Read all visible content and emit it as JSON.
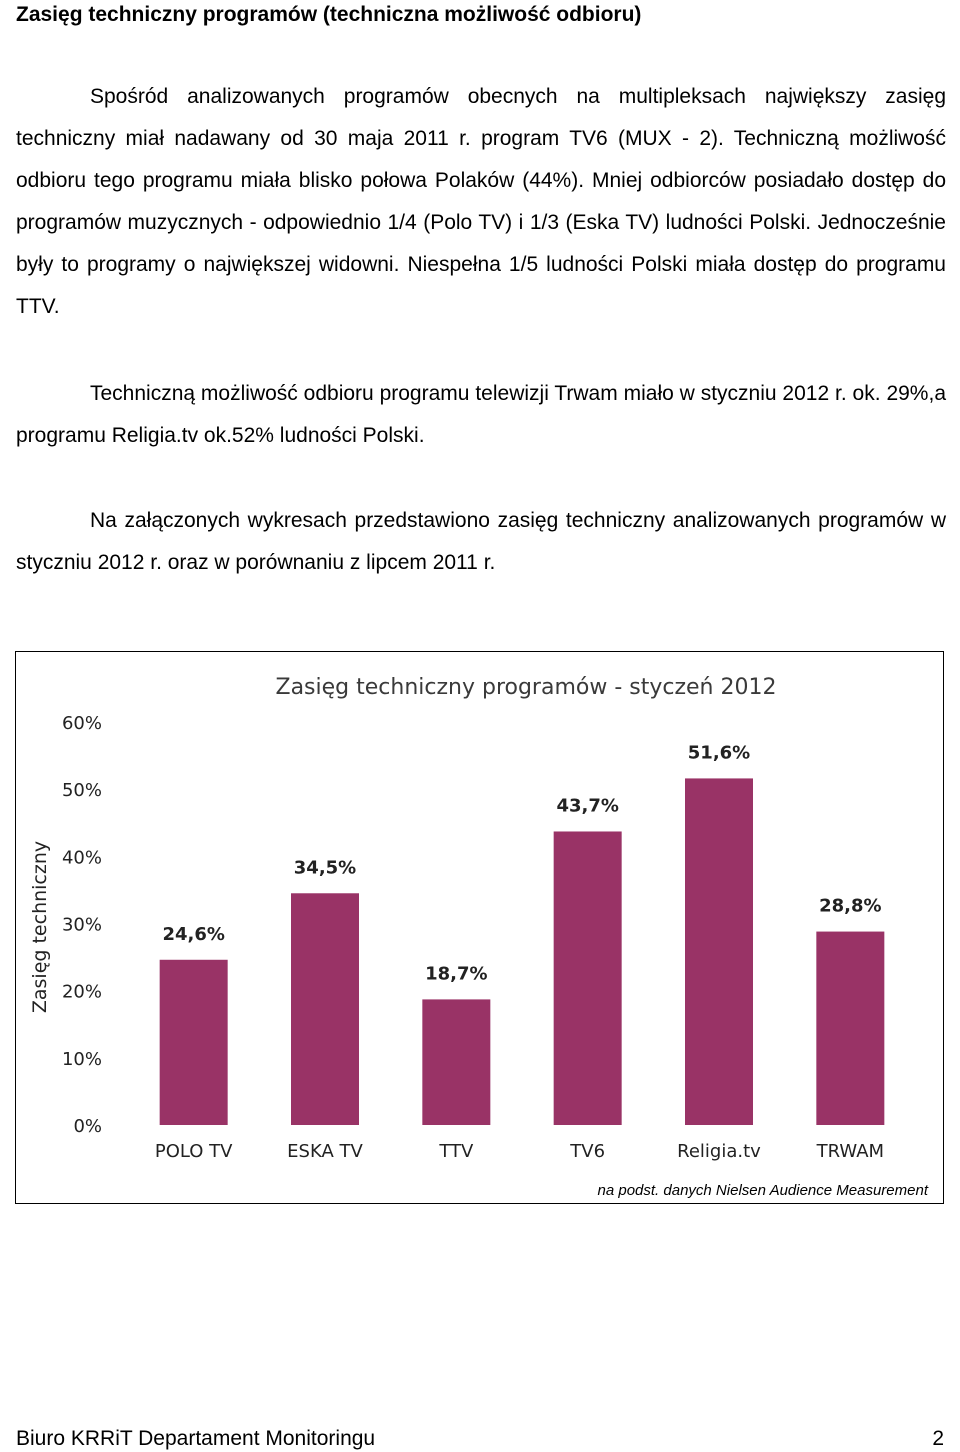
{
  "heading": "Zasięg techniczny programów (techniczna możliwość odbioru)",
  "paragraphs": [
    "Spośród analizowanych programów obecnych na multipleksach największy zasięg techniczny miał nadawany od 30 maja 2011 r. program TV6 (MUX - 2). Techniczną możliwość odbioru tego programu miała blisko połowa Polaków (44%). Mniej odbiorców posiadało dostęp do programów muzycznych - odpowiednio 1/4 (Polo TV) i 1/3 (Eska TV) ludności Polski. Jednocześnie były to programy o największej widowni. Niespełna 1/5 ludności Polski miała dostęp do programu TTV.",
    "Techniczną możliwość odbioru programu telewizji Trwam miało w styczniu 2012 r. ok. 29%,a programu Religia.tv ok.52% ludności Polski.",
    "Na załączonych wykresach przedstawiono zasięg techniczny analizowanych programów w styczniu 2012 r. oraz w porównaniu z lipcem 2011 r."
  ],
  "chart_data": {
    "type": "bar",
    "title": "Zasięg techniczny  programów - styczeń 2012",
    "ylabel": "Zasięg techniczny",
    "xlabel": "",
    "categories": [
      "POLO TV",
      "ESKA TV",
      "TTV",
      "TV6",
      "Religia.tv",
      "TRWAM"
    ],
    "values": [
      24.6,
      34.5,
      18.7,
      43.7,
      51.6,
      28.8
    ],
    "value_labels": [
      "24,6%",
      "34,5%",
      "18,7%",
      "43,7%",
      "51,6%",
      "28,8%"
    ],
    "yticks": [
      0,
      10,
      20,
      30,
      40,
      50,
      60
    ],
    "ytick_labels": [
      "0%",
      "10%",
      "20%",
      "30%",
      "40%",
      "50%",
      "60%"
    ],
    "ylim": [
      0,
      60
    ],
    "grid": false,
    "bar_color": "#993366",
    "source_note": "na podst. danych Nielsen Audience Measurement"
  },
  "footer": {
    "text": "Biuro KRRiT Departament Monitoringu",
    "page_number": "2"
  }
}
